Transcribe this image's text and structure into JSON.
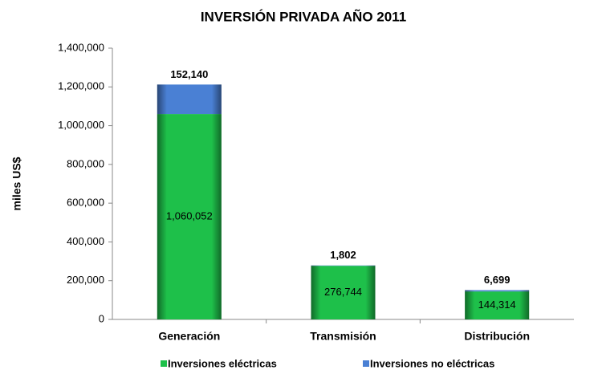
{
  "chart_data": {
    "type": "stacked_bar",
    "title": "INVERSIÓN PRIVADA AÑO 2011",
    "ylabel": "miles US$",
    "categories": [
      "Generación",
      "Transmisión",
      "Distribución"
    ],
    "series": [
      {
        "name": "Inversiones eléctricas",
        "color": "#1ec04a",
        "values": [
          1060052,
          276744,
          144314
        ],
        "value_labels": [
          "1,060,052",
          "276,744",
          "144,314"
        ]
      },
      {
        "name": "Inversiones no eléctricas",
        "color": "#4a80d4",
        "values": [
          152140,
          1802,
          6699
        ],
        "value_labels": [
          "152,140",
          "1,802",
          "6,699"
        ]
      }
    ],
    "ylim": [
      0,
      1400000
    ],
    "yticks": [
      0,
      {
        "value": 200000,
        "label": "200,000"
      },
      {
        "value": 400000,
        "label": "400,000"
      },
      {
        "value": 600000,
        "label": "600,000"
      },
      {
        "value": 800000,
        "label": "800,000"
      },
      {
        "value": 1000000,
        "label": "1,000,000"
      },
      {
        "value": 1200000,
        "label": "1,200,000"
      },
      {
        "value": 1400000,
        "label": "1,400,000"
      }
    ],
    "legend": "bottom"
  }
}
